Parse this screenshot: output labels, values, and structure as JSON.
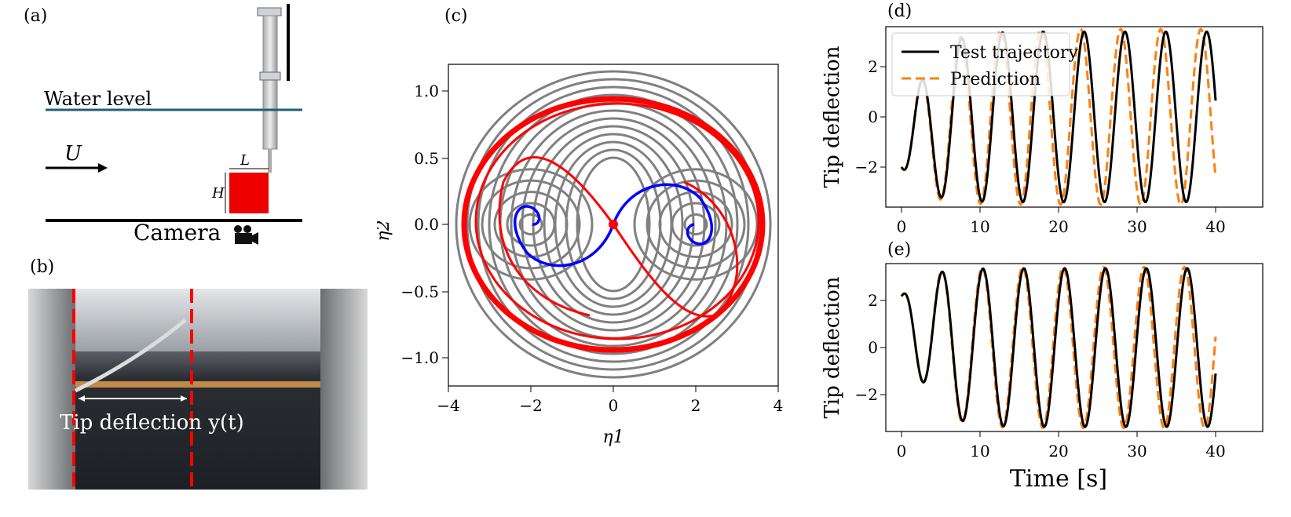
{
  "panels": {
    "a": {
      "letter": "(a)",
      "water_level": "Water level",
      "flow": "U",
      "length": "L",
      "height": "H",
      "camera": "Camera"
    },
    "b": {
      "letter": "(b)",
      "tip_label": "Tip deflection y(t)"
    },
    "c": {
      "letter": "(c)",
      "xlabel": "η1",
      "ylabel": "η2",
      "xticks": [
        "−4",
        "−2",
        "0",
        "2",
        "4"
      ],
      "yticks": [
        "1.0",
        "0.5",
        "0.0",
        "−0.5",
        "−1.0"
      ]
    },
    "d": {
      "letter": "(d)",
      "ylabel": "Tip deflection",
      "legend": [
        "Test trajectory",
        "Prediction"
      ],
      "xticks": [
        "0",
        "10",
        "20",
        "30",
        "40"
      ],
      "yticks": [
        "2",
        "0",
        "−2"
      ]
    },
    "e": {
      "letter": "(e)",
      "ylabel": "Tip deflection",
      "xlabel": "Time [s]",
      "xticks": [
        "0",
        "10",
        "20",
        "30",
        "40"
      ],
      "yticks": [
        "2",
        "0",
        "−2"
      ]
    }
  },
  "colors": {
    "test": "#000000",
    "prediction": "#ff7f0e",
    "stream": "#808080",
    "red": "#ff0000",
    "blue": "#0000ff",
    "water": "#1f5f7a"
  },
  "chart_data": [
    {
      "type": "line",
      "panel": "d",
      "xlim": [
        0,
        40
      ],
      "ylim": [
        -3.6,
        3.6
      ],
      "series": [
        {
          "name": "Test trajectory",
          "period": 5.2,
          "amplitude": 3.4
        },
        {
          "name": "Prediction",
          "period": 5.1,
          "amplitude": 3.5
        }
      ]
    },
    {
      "type": "line",
      "panel": "e",
      "xlim": [
        0,
        40
      ],
      "ylim": [
        -3.6,
        3.6
      ],
      "series": [
        {
          "name": "Test trajectory",
          "period": 5.2,
          "amplitude": 3.4
        },
        {
          "name": "Prediction",
          "period": 5.15,
          "amplitude": 3.45
        }
      ]
    }
  ]
}
